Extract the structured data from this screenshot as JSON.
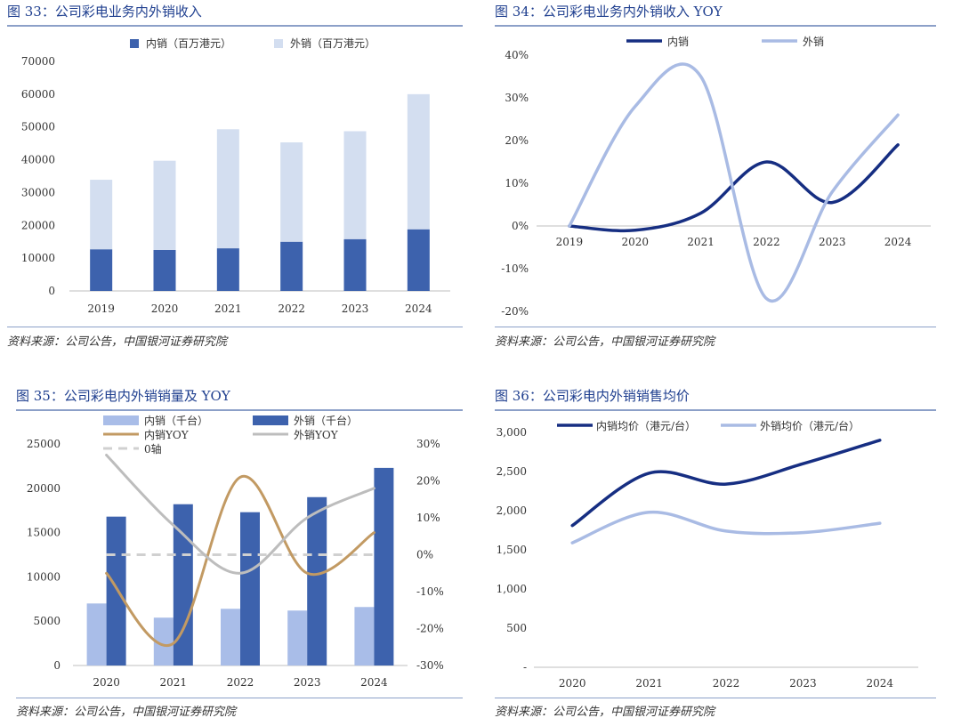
{
  "colors": {
    "title": "#1f3f8f",
    "dark_blue": "#3d62ad",
    "light_blue": "#d3def0",
    "navy": "#162e82",
    "pale": "#a9bbe4",
    "bar_light": "#a9bde8",
    "bar_dark": "#3d62ad",
    "gold": "#c29a63",
    "grey": "#bdbdbd",
    "dash": "#d0d0d0"
  },
  "panels": [
    {
      "title": "图 33：公司彩电业务内外销收入",
      "source": "资料来源：公司公告，中国银河证券研究院"
    },
    {
      "title": "图 34：公司彩电业务内外销收入 YOY",
      "source": "资料来源：公司公告，中国银河证券研究院"
    },
    {
      "title": "图 35：公司彩电内外销销量及 YOY",
      "source": "资料来源：公司公告，中国银河证券研究院"
    },
    {
      "title": "图 36：公司彩电内外销销售均价",
      "source": "资料来源：公司公告，中国银河证券研究院"
    }
  ],
  "chart_data": [
    {
      "type": "bar",
      "stacked": true,
      "categories": [
        "2019",
        "2020",
        "2021",
        "2022",
        "2023",
        "2024"
      ],
      "series": [
        {
          "name": "内销（百万港元）",
          "values": [
            12700,
            12500,
            13000,
            15000,
            15800,
            18800
          ]
        },
        {
          "name": "外销（百万港元）",
          "values": [
            21200,
            27200,
            36300,
            30300,
            32900,
            41200
          ]
        }
      ],
      "y_ticks": [
        "0",
        "10000",
        "20000",
        "30000",
        "40000",
        "50000",
        "60000",
        "70000"
      ],
      "ylim": [
        0,
        70000
      ],
      "legend": "top"
    },
    {
      "type": "line",
      "categories": [
        "2019",
        "2020",
        "2021",
        "2022",
        "2023",
        "2024"
      ],
      "series": [
        {
          "name": "内销",
          "values": [
            0,
            -1,
            3,
            15,
            5.5,
            19
          ]
        },
        {
          "name": "外销",
          "values": [
            0,
            28,
            35,
            -17,
            8,
            26
          ]
        }
      ],
      "y_ticks": [
        "-20%",
        "-10%",
        "0%",
        "10%",
        "20%",
        "30%",
        "40%"
      ],
      "ylim": [
        -20,
        40
      ],
      "legend": "top"
    },
    {
      "type": "bar",
      "categories": [
        "2020",
        "2021",
        "2022",
        "2023",
        "2024"
      ],
      "series": [
        {
          "name": "内销（千台）",
          "values": [
            7000,
            5400,
            6400,
            6200,
            6600
          ]
        },
        {
          "name": "外销（千台）",
          "values": [
            16800,
            18200,
            17300,
            19000,
            22300
          ]
        }
      ],
      "line_series": [
        {
          "name": "内销YOY",
          "values": [
            -5,
            -24,
            21,
            -5,
            6
          ]
        },
        {
          "name": "外销YOY",
          "values": [
            27,
            8,
            -5,
            10,
            18
          ]
        },
        {
          "name": "0轴",
          "values": [
            0,
            0,
            0,
            0,
            0
          ]
        }
      ],
      "y_ticks": [
        "0",
        "5000",
        "10000",
        "15000",
        "20000",
        "25000"
      ],
      "ylim": [
        0,
        25000
      ],
      "y2_ticks": [
        "-30%",
        "-20%",
        "-10%",
        "0%",
        "10%",
        "20%",
        "30%"
      ],
      "y2lim": [
        -30,
        30
      ],
      "legend": "top"
    },
    {
      "type": "line",
      "categories": [
        "2020",
        "2021",
        "2022",
        "2023",
        "2024"
      ],
      "series": [
        {
          "name": "内销均价（港元/台）",
          "values": [
            1810,
            2480,
            2340,
            2600,
            2900
          ]
        },
        {
          "name": "外销均价（港元/台）",
          "values": [
            1590,
            1980,
            1740,
            1720,
            1840
          ]
        }
      ],
      "y_ticks": [
        "-",
        "500",
        "1,000",
        "1,500",
        "2,000",
        "2,500",
        "3,000"
      ],
      "ylim": [
        0,
        3000
      ],
      "legend": "top"
    }
  ]
}
